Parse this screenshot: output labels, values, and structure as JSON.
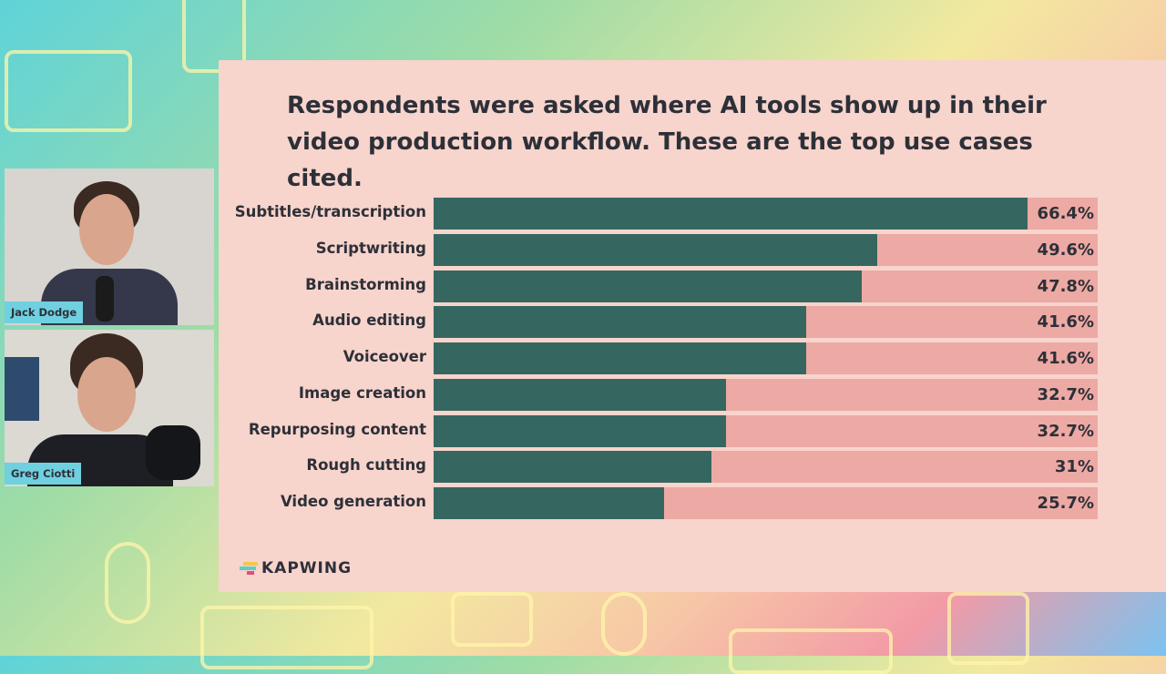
{
  "chart_data": {
    "type": "bar",
    "orientation": "horizontal",
    "title": "Respondents were asked where AI tools show up in their video production workflow. These are the top use cases cited.",
    "categories": [
      "Subtitles/transcription",
      "Scriptwriting",
      "Brainstorming",
      "Audio editing",
      "Voiceover",
      "Image creation",
      "Repurposing content",
      "Rough cutting",
      "Video generation"
    ],
    "values": [
      66.4,
      49.6,
      47.8,
      41.6,
      41.6,
      32.7,
      32.7,
      31,
      25.7
    ],
    "value_labels": [
      "66.4%",
      "49.6%",
      "47.8%",
      "41.6%",
      "41.6%",
      "32.7%",
      "32.7%",
      "31%",
      "25.7%"
    ],
    "xlim": [
      0,
      74.2
    ],
    "unit": "%",
    "colors": {
      "bar": "#356760",
      "track": "#eda9a4",
      "panel": "#f7d4cc"
    }
  },
  "brand": {
    "logo_text": "KAPWING"
  },
  "participants": [
    {
      "name": "Jack Dodge"
    },
    {
      "name": "Greg Ciotti"
    }
  ]
}
